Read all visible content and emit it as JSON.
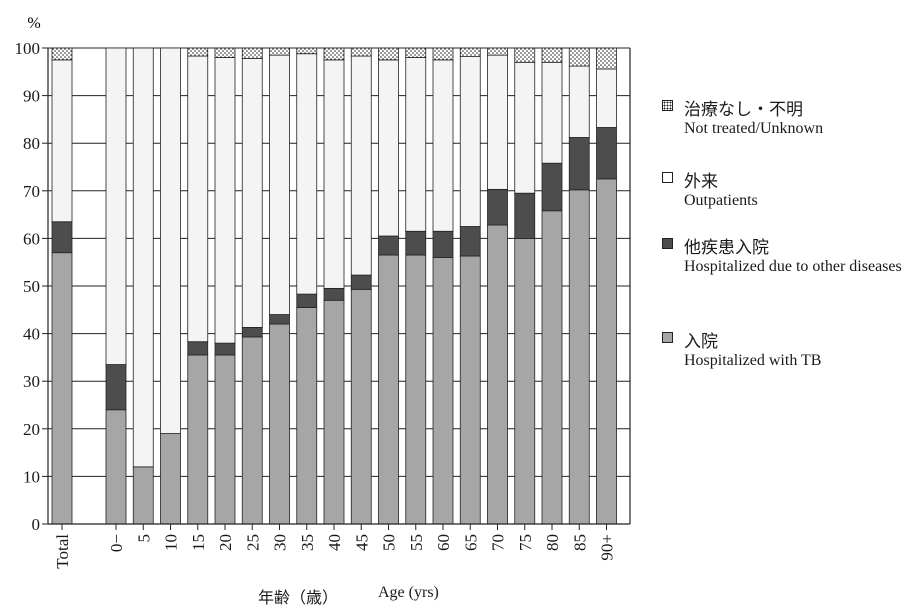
{
  "chart_data": {
    "type": "bar",
    "stacked": true,
    "ylabel": "%",
    "xlabel_ja": "年齢（歳）",
    "xlabel_en": "Age (yrs)",
    "ylim": [
      0,
      100
    ],
    "yticks": [
      "0",
      "10",
      "20",
      "30",
      "40",
      "50",
      "60",
      "70",
      "80",
      "90",
      "100"
    ],
    "categories": [
      "Total",
      "0−",
      "5",
      "10",
      "15",
      "20",
      "25",
      "30",
      "35",
      "40",
      "45",
      "50",
      "55",
      "60",
      "65",
      "70",
      "75",
      "80",
      "85",
      "90+"
    ],
    "grid": true,
    "legend_position": "right",
    "series": [
      {
        "name_ja": "入院",
        "name_en": "Hospitalized with TB",
        "color": "#a6a6a6",
        "values": [
          57,
          24,
          12,
          19,
          35.5,
          35.5,
          39.3,
          42,
          45.5,
          47,
          49.3,
          56.5,
          56.5,
          56,
          56.3,
          62.8,
          60,
          65.8,
          70.2,
          72.5
        ]
      },
      {
        "name_ja": "他疾患入院",
        "name_en": "Hospitalized due to other diseases",
        "color": "#4d4d4d",
        "values": [
          6.5,
          9.5,
          0,
          0,
          2.8,
          2.5,
          2,
          2,
          2.8,
          2.5,
          3,
          4,
          5,
          5.5,
          6.2,
          7.5,
          9.5,
          10,
          11,
          10.8
        ]
      },
      {
        "name_ja": "外来",
        "name_en": "Outpatients",
        "color": "#f4f4f4",
        "values": [
          34,
          66.5,
          88,
          81,
          60,
          60,
          56.5,
          54.5,
          50.5,
          48,
          46,
          37,
          36.5,
          36,
          35.7,
          28.2,
          27.5,
          21.2,
          15,
          12.3
        ]
      },
      {
        "name_ja": "治療なし・不明",
        "name_en": "Not treated/Unknown",
        "color": "#dcdcdc",
        "pattern": "dotted",
        "values": [
          2.5,
          0,
          0,
          0,
          1.7,
          2,
          2.2,
          1.5,
          1.2,
          2.5,
          1.7,
          2.5,
          2,
          2.5,
          1.8,
          1.5,
          3,
          3,
          3.8,
          4.4
        ]
      }
    ]
  }
}
